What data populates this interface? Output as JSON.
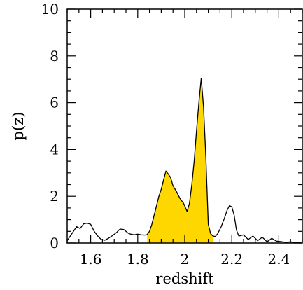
{
  "chart_data": {
    "type": "area",
    "title": "",
    "xlabel": "redshift",
    "ylabel": "p(z)",
    "xlim": [
      1.5,
      2.5
    ],
    "ylim": [
      0,
      10
    ],
    "grid": false,
    "xticks": {
      "major": [
        1.6,
        1.8,
        2.0,
        2.2,
        2.4
      ],
      "labels": [
        "1.6",
        "1.8",
        "2",
        "2.2",
        "2.4"
      ],
      "minor_step": 0.05
    },
    "yticks": {
      "major": [
        0,
        2,
        4,
        6,
        8,
        10
      ],
      "labels": [
        "0",
        "2",
        "4",
        "6",
        "8",
        "10"
      ],
      "minor_step": 0.5
    },
    "fill_color": "#ffd700",
    "line_color": "#000000",
    "highlight_range": [
      1.84,
      2.12
    ],
    "series": [
      {
        "x": [
          1.5,
          1.52,
          1.54,
          1.555,
          1.57,
          1.585,
          1.6,
          1.615,
          1.63,
          1.645,
          1.66,
          1.675,
          1.69,
          1.71,
          1.725,
          1.74,
          1.75,
          1.76,
          1.77,
          1.785,
          1.8,
          1.815,
          1.83,
          1.84,
          1.85,
          1.86,
          1.87,
          1.88,
          1.89,
          1.9,
          1.91,
          1.92,
          1.93,
          1.94,
          1.95,
          1.965,
          1.98,
          1.995,
          2.01,
          2.02,
          2.03,
          2.04,
          2.05,
          2.06,
          2.07,
          2.08,
          2.09,
          2.1,
          2.11,
          2.12,
          2.13,
          2.14,
          2.155,
          2.17,
          2.18,
          2.19,
          2.2,
          2.21,
          2.22,
          2.23,
          2.25,
          2.27,
          2.29,
          2.31,
          2.33,
          2.35,
          2.37,
          2.39,
          2.41,
          2.43,
          2.45,
          2.47,
          2.5
        ],
        "y": [
          0.1,
          0.4,
          0.7,
          0.62,
          0.82,
          0.85,
          0.8,
          0.5,
          0.3,
          0.15,
          0.12,
          0.2,
          0.3,
          0.45,
          0.6,
          0.58,
          0.5,
          0.42,
          0.38,
          0.35,
          0.38,
          0.35,
          0.34,
          0.36,
          0.5,
          0.8,
          1.2,
          1.6,
          2.0,
          2.3,
          2.7,
          3.08,
          2.95,
          2.8,
          2.45,
          2.2,
          1.9,
          1.7,
          1.35,
          1.7,
          2.5,
          3.5,
          4.8,
          6.0,
          7.05,
          5.8,
          3.6,
          0.8,
          0.4,
          0.3,
          0.28,
          0.4,
          0.7,
          1.1,
          1.4,
          1.6,
          1.55,
          1.2,
          0.55,
          0.3,
          0.35,
          0.15,
          0.3,
          0.1,
          0.25,
          0.05,
          0.2,
          0.08,
          0.06,
          0.03,
          0.05,
          0.02,
          0.0
        ]
      }
    ]
  }
}
